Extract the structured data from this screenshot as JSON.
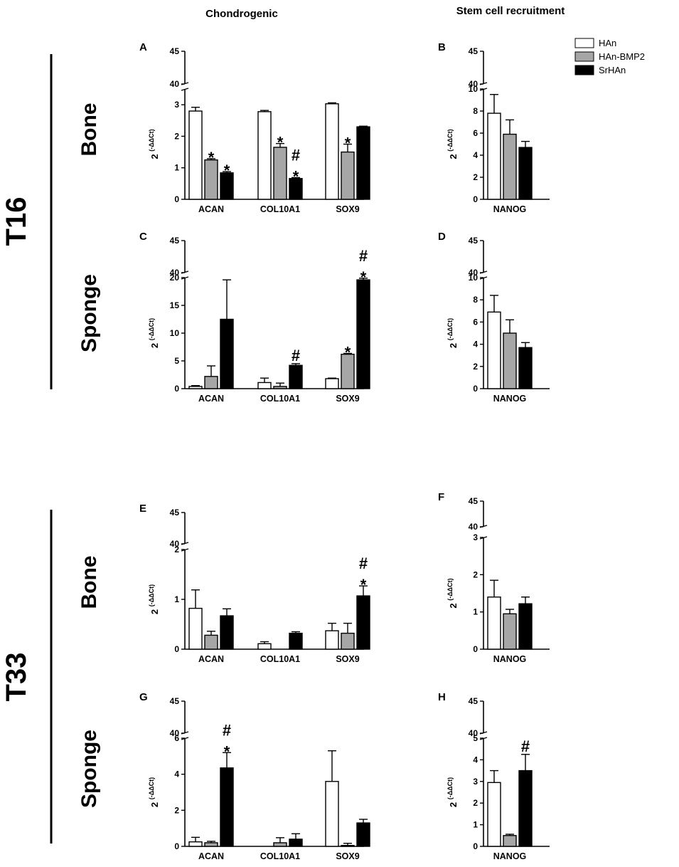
{
  "headers": {
    "left": "Chondrogenic",
    "right": "Stem cell recruitment"
  },
  "groups": [
    {
      "label": "T16"
    },
    {
      "label": "T33"
    }
  ],
  "rows": [
    {
      "label": "Bone"
    },
    {
      "label": "Sponge"
    },
    {
      "label": "Bone"
    },
    {
      "label": "Sponge"
    }
  ],
  "ylabel": {
    "base": "2",
    "exponent": "(-ΔΔCt)"
  },
  "legend": [
    {
      "name": "HAn",
      "color": "#ffffff"
    },
    {
      "name": "HAn-BMP2",
      "color": "#a6a6a6"
    },
    {
      "name": "SrHAn",
      "color": "#000000"
    }
  ],
  "chart_data": [
    {
      "type": "bar",
      "panel": "A",
      "categories": [
        "ACAN",
        "COL10A1",
        "SOX9"
      ],
      "series": [
        {
          "name": "HAn",
          "values": [
            2.8,
            2.78,
            3.03
          ],
          "errors": [
            0.12,
            0.04,
            0.03
          ]
        },
        {
          "name": "HAn-BMP2",
          "values": [
            1.25,
            1.65,
            1.5
          ],
          "errors": [
            0.04,
            0.12,
            0.25
          ]
        },
        {
          "name": "SrHAn",
          "values": [
            0.84,
            0.66,
            2.3
          ],
          "errors": [
            0.04,
            0.03,
            0.02
          ]
        }
      ],
      "ylim": [
        0,
        45
      ],
      "break": [
        3.5,
        40
      ],
      "yticks_low": [
        0,
        1,
        2,
        3
      ],
      "yticks_high": [
        40,
        45
      ],
      "annotations": [
        {
          "category": 0,
          "series": 1,
          "text": [
            "*"
          ]
        },
        {
          "category": 0,
          "series": 2,
          "text": [
            "*"
          ]
        },
        {
          "category": 1,
          "series": 1,
          "text": [
            "*"
          ]
        },
        {
          "category": 1,
          "series": 2,
          "text": [
            "#",
            "*"
          ]
        },
        {
          "category": 2,
          "series": 1,
          "text": [
            "*"
          ]
        }
      ]
    },
    {
      "type": "bar",
      "panel": "B",
      "categories": [
        "NANOG"
      ],
      "series": [
        {
          "name": "HAn",
          "values": [
            7.8
          ],
          "errors": [
            1.7
          ]
        },
        {
          "name": "HAn-BMP2",
          "values": [
            5.9
          ],
          "errors": [
            1.3
          ]
        },
        {
          "name": "SrHAn",
          "values": [
            4.7
          ],
          "errors": [
            0.55
          ]
        }
      ],
      "ylim": [
        0,
        45
      ],
      "break": [
        10,
        40
      ],
      "yticks_low": [
        0,
        2,
        4,
        6,
        8,
        10
      ],
      "yticks_high": [
        40,
        45
      ],
      "annotations": []
    },
    {
      "type": "bar",
      "panel": "C",
      "categories": [
        "ACAN",
        "COL10A1",
        "SOX9"
      ],
      "series": [
        {
          "name": "HAn",
          "values": [
            0.4,
            1.1,
            1.8
          ],
          "errors": [
            0.15,
            0.8,
            0.1
          ]
        },
        {
          "name": "HAn-BMP2",
          "values": [
            2.2,
            0.4,
            6.2
          ],
          "errors": [
            1.9,
            0.6,
            0.15
          ]
        },
        {
          "name": "SrHAn",
          "values": [
            12.5,
            4.2,
            19.6
          ],
          "errors": [
            7.1,
            0.3,
            0.3
          ]
        }
      ],
      "ylim": [
        0,
        45
      ],
      "break": [
        20,
        40
      ],
      "yticks_low": [
        0,
        5,
        10,
        15,
        20
      ],
      "yticks_high": [
        40,
        45
      ],
      "annotations": [
        {
          "category": 1,
          "series": 2,
          "text": [
            "#"
          ]
        },
        {
          "category": 2,
          "series": 1,
          "text": [
            "*"
          ]
        },
        {
          "category": 2,
          "series": 2,
          "text": [
            "#",
            "*"
          ]
        }
      ]
    },
    {
      "type": "bar",
      "panel": "D",
      "categories": [
        "NANOG"
      ],
      "series": [
        {
          "name": "HAn",
          "values": [
            6.9
          ],
          "errors": [
            1.5
          ]
        },
        {
          "name": "HAn-BMP2",
          "values": [
            5.0
          ],
          "errors": [
            1.2
          ]
        },
        {
          "name": "SrHAn",
          "values": [
            3.7
          ],
          "errors": [
            0.45
          ]
        }
      ],
      "ylim": [
        0,
        45
      ],
      "break": [
        10,
        40
      ],
      "yticks_low": [
        0,
        2,
        4,
        6,
        8,
        10
      ],
      "yticks_high": [
        40,
        45
      ],
      "annotations": []
    },
    {
      "type": "bar",
      "panel": "E",
      "categories": [
        "ACAN",
        "COL10A1",
        "SOX9"
      ],
      "series": [
        {
          "name": "HAn",
          "values": [
            0.82,
            0.11,
            0.37
          ],
          "errors": [
            0.37,
            0.04,
            0.15
          ]
        },
        {
          "name": "HAn-BMP2",
          "values": [
            0.28,
            0.0,
            0.32
          ],
          "errors": [
            0.08,
            0.0,
            0.2
          ]
        },
        {
          "name": "SrHAn",
          "values": [
            0.67,
            0.32,
            1.07
          ],
          "errors": [
            0.14,
            0.03,
            0.2
          ]
        }
      ],
      "ylim": [
        0,
        45
      ],
      "break": [
        2,
        40
      ],
      "yticks_low": [
        0,
        1,
        2
      ],
      "yticks_high": [
        40,
        45
      ],
      "annotations": [
        {
          "category": 2,
          "series": 2,
          "text": [
            "#",
            "*"
          ]
        }
      ]
    },
    {
      "type": "bar",
      "panel": "F",
      "categories": [
        "NANOG"
      ],
      "series": [
        {
          "name": "HAn",
          "values": [
            1.4
          ],
          "errors": [
            0.45
          ]
        },
        {
          "name": "HAn-BMP2",
          "values": [
            0.95
          ],
          "errors": [
            0.12
          ]
        },
        {
          "name": "SrHAn",
          "values": [
            1.22
          ],
          "errors": [
            0.18
          ]
        }
      ],
      "ylim": [
        0,
        45
      ],
      "break": [
        3,
        40
      ],
      "yticks_low": [
        0,
        1,
        2,
        3
      ],
      "yticks_high": [
        40,
        45
      ],
      "annotations": []
    },
    {
      "type": "bar",
      "panel": "G",
      "categories": [
        "ACAN",
        "COL10A1",
        "SOX9"
      ],
      "series": [
        {
          "name": "HAn",
          "values": [
            0.25,
            0.0,
            3.6
          ],
          "errors": [
            0.25,
            0.0,
            1.7
          ]
        },
        {
          "name": "HAn-BMP2",
          "values": [
            0.2,
            0.2,
            0.05
          ],
          "errors": [
            0.08,
            0.28,
            0.12
          ]
        },
        {
          "name": "SrHAn",
          "values": [
            4.35,
            0.4,
            1.3
          ],
          "errors": [
            0.85,
            0.3,
            0.2
          ]
        }
      ],
      "ylim": [
        0,
        45
      ],
      "break": [
        6,
        40
      ],
      "yticks_low": [
        0,
        2,
        4,
        6
      ],
      "yticks_high": [
        40,
        45
      ],
      "annotations": [
        {
          "category": 0,
          "series": 2,
          "text": [
            "#",
            "*"
          ]
        }
      ]
    },
    {
      "type": "bar",
      "panel": "H",
      "categories": [
        "NANOG"
      ],
      "series": [
        {
          "name": "HAn",
          "values": [
            2.95
          ],
          "errors": [
            0.55
          ]
        },
        {
          "name": "HAn-BMP2",
          "values": [
            0.5
          ],
          "errors": [
            0.06
          ]
        },
        {
          "name": "SrHAn",
          "values": [
            3.5
          ],
          "errors": [
            0.75
          ]
        }
      ],
      "ylim": [
        0,
        45
      ],
      "break": [
        5,
        40
      ],
      "yticks_low": [
        0,
        1,
        2,
        3,
        4,
        5
      ],
      "yticks_high": [
        40,
        45
      ],
      "annotations": [
        {
          "category": 0,
          "series": 2,
          "text": [
            "#"
          ]
        }
      ]
    }
  ]
}
